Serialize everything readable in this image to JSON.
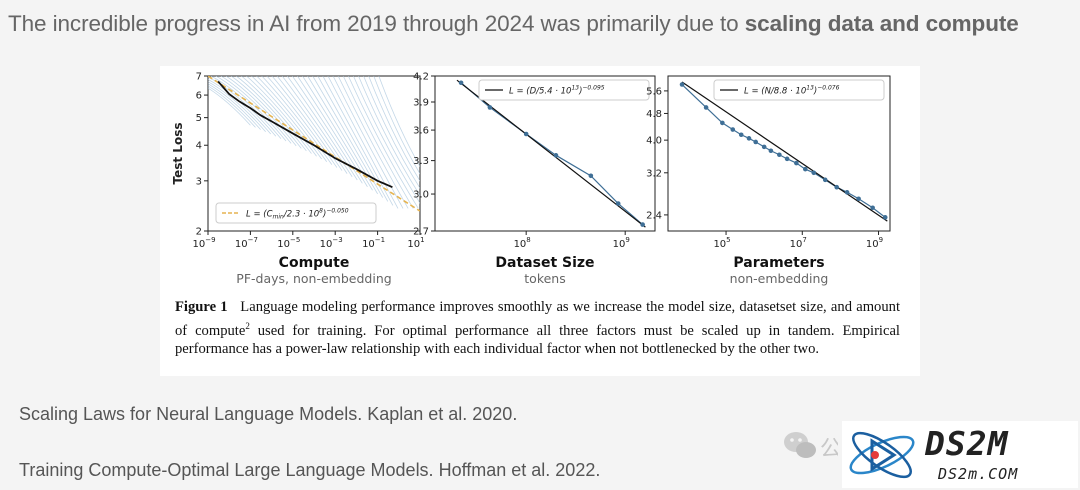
{
  "headline": {
    "prefix": "The incredible progress in AI from 2019 through 2024 was primarily due to ",
    "emphasis": "scaling data and compute"
  },
  "caption": {
    "label": "Figure 1",
    "sup": "2",
    "part1": "Language modeling performance improves smoothly as we increase the model size, datasetset size, and amount of compute",
    "part2": " used for training. For optimal performance all three factors must be scaled up in tandem. Empirical performance has a power-law relationship with each individual factor when not bottlenecked by the other two."
  },
  "references": [
    "Scaling Laws for Neural Language Models. Kaplan et al. 2020.",
    "Training Compute-Optimal Large Language Models. Hoffman et al. 2022."
  ],
  "watermark": {
    "main": "DS2M",
    "sub": "DS2m.COM",
    "wechat_char": "公"
  },
  "colors": {
    "fit_line": "#111111",
    "data": "#3f6f96",
    "trails": "#a9c6dd",
    "compute_fit": "#e6b450",
    "background": "#f4f4f4"
  },
  "chart_data": [
    {
      "type": "line",
      "title": "Compute",
      "subtitle": "PF-days, non-embedding",
      "ylabel": "Test Loss",
      "xscale": "log",
      "yscale": "log",
      "xlim": [
        1e-09,
        10
      ],
      "ylim": [
        2,
        7
      ],
      "xticks": [
        {
          "v": 1e-09,
          "base": "10",
          "exp": "−9"
        },
        {
          "v": 1e-07,
          "base": "10",
          "exp": "−7"
        },
        {
          "v": 1e-05,
          "base": "10",
          "exp": "−5"
        },
        {
          "v": 0.001,
          "base": "10",
          "exp": "−3"
        },
        {
          "v": 0.1,
          "base": "10",
          "exp": "−1"
        },
        {
          "v": 10,
          "base": "10",
          "exp": "1"
        }
      ],
      "yticks": [
        {
          "v": 2,
          "label": "2"
        },
        {
          "v": 3,
          "label": "3"
        },
        {
          "v": 4,
          "label": "4"
        },
        {
          "v": 5,
          "label": "5"
        },
        {
          "v": 6,
          "label": "6"
        },
        {
          "v": 7,
          "label": "7"
        }
      ],
      "legend": {
        "pre": "L = (C",
        "sub": "min",
        "mid": "/2.3 · 10",
        "sup1": "8",
        "post": ")",
        "sup2": "−0.050",
        "position": "bottom-left"
      },
      "frontier": {
        "x": [
          3e-09,
          1e-08,
          3e-08,
          1e-07,
          3e-07,
          1e-06,
          1e-05,
          0.0001,
          0.001,
          0.01,
          0.1,
          0.5
        ],
        "y": [
          6.7,
          6.05,
          5.7,
          5.4,
          5.1,
          4.85,
          4.4,
          4.0,
          3.6,
          3.3,
          3.0,
          2.85
        ]
      },
      "fit": {
        "x": [
          1e-09,
          10
        ],
        "y": [
          7.0,
          2.35
        ]
      },
      "trail_count": 40
    },
    {
      "type": "line",
      "title": "Dataset Size",
      "subtitle": "tokens",
      "xscale": "log",
      "yscale": "log",
      "xlim": [
        12000000.0,
        2000000000.0
      ],
      "ylim": [
        2.7,
        4.2
      ],
      "xticks": [
        {
          "v": 100000000.0,
          "base": "10",
          "exp": "8"
        },
        {
          "v": 1000000000.0,
          "base": "10",
          "exp": "9"
        }
      ],
      "yticks": [
        {
          "v": 2.7,
          "label": "2.7"
        },
        {
          "v": 3.0,
          "label": "3.0"
        },
        {
          "v": 3.3,
          "label": "3.3"
        },
        {
          "v": 3.6,
          "label": "3.6"
        },
        {
          "v": 3.9,
          "label": "3.9"
        },
        {
          "v": 4.2,
          "label": "4.2"
        }
      ],
      "legend": {
        "pre": "L = (D/5.4 · 10",
        "sup1": "13",
        "post": ")",
        "sup2": "−0.095",
        "position": "top-right"
      },
      "points": {
        "x": [
          22000000.0,
          43000000.0,
          100000000.0,
          200000000.0,
          450000000.0,
          850000000.0,
          1500000000.0
        ],
        "y": [
          4.12,
          3.84,
          3.56,
          3.35,
          3.16,
          2.92,
          2.75
        ]
      },
      "fit": {
        "x": [
          20000000.0,
          1600000000.0
        ],
        "y": [
          4.15,
          2.73
        ]
      }
    },
    {
      "type": "line",
      "title": "Parameters",
      "subtitle": "non-embedding",
      "xscale": "log",
      "yscale": "log",
      "xlim": [
        3000.0,
        2000000000.0
      ],
      "ylim": [
        2.15,
        6.2
      ],
      "xticks": [
        {
          "v": 100000.0,
          "base": "10",
          "exp": "5"
        },
        {
          "v": 10000000.0,
          "base": "10",
          "exp": "7"
        },
        {
          "v": 1000000000.0,
          "base": "10",
          "exp": "9"
        }
      ],
      "yticks": [
        {
          "v": 2.4,
          "label": "2.4"
        },
        {
          "v": 3.2,
          "label": "3.2"
        },
        {
          "v": 4.0,
          "label": "4.0"
        },
        {
          "v": 4.8,
          "label": "4.8"
        },
        {
          "v": 5.6,
          "label": "5.6"
        }
      ],
      "legend": {
        "pre": "L = (N/8.8 · 10",
        "sup1": "13",
        "post": ")",
        "sup2": "−0.076",
        "position": "top-right"
      },
      "points": {
        "x": [
          7000.0,
          30000.0,
          80000.0,
          150000.0,
          250000.0,
          400000.0,
          600000.0,
          1000000.0,
          1500000.0,
          2500000.0,
          4000000.0,
          7000000.0,
          12000000.0,
          20000000.0,
          40000000.0,
          80000000.0,
          150000000.0,
          300000000.0,
          700000000.0,
          1500000000.0
        ],
        "y": [
          5.85,
          5.0,
          4.5,
          4.3,
          4.15,
          4.05,
          3.95,
          3.82,
          3.72,
          3.62,
          3.52,
          3.42,
          3.28,
          3.2,
          3.05,
          2.9,
          2.8,
          2.68,
          2.52,
          2.36
        ]
      },
      "fit": {
        "x": [
          7000.0,
          1700000000.0
        ],
        "y": [
          5.95,
          2.3
        ]
      }
    }
  ]
}
